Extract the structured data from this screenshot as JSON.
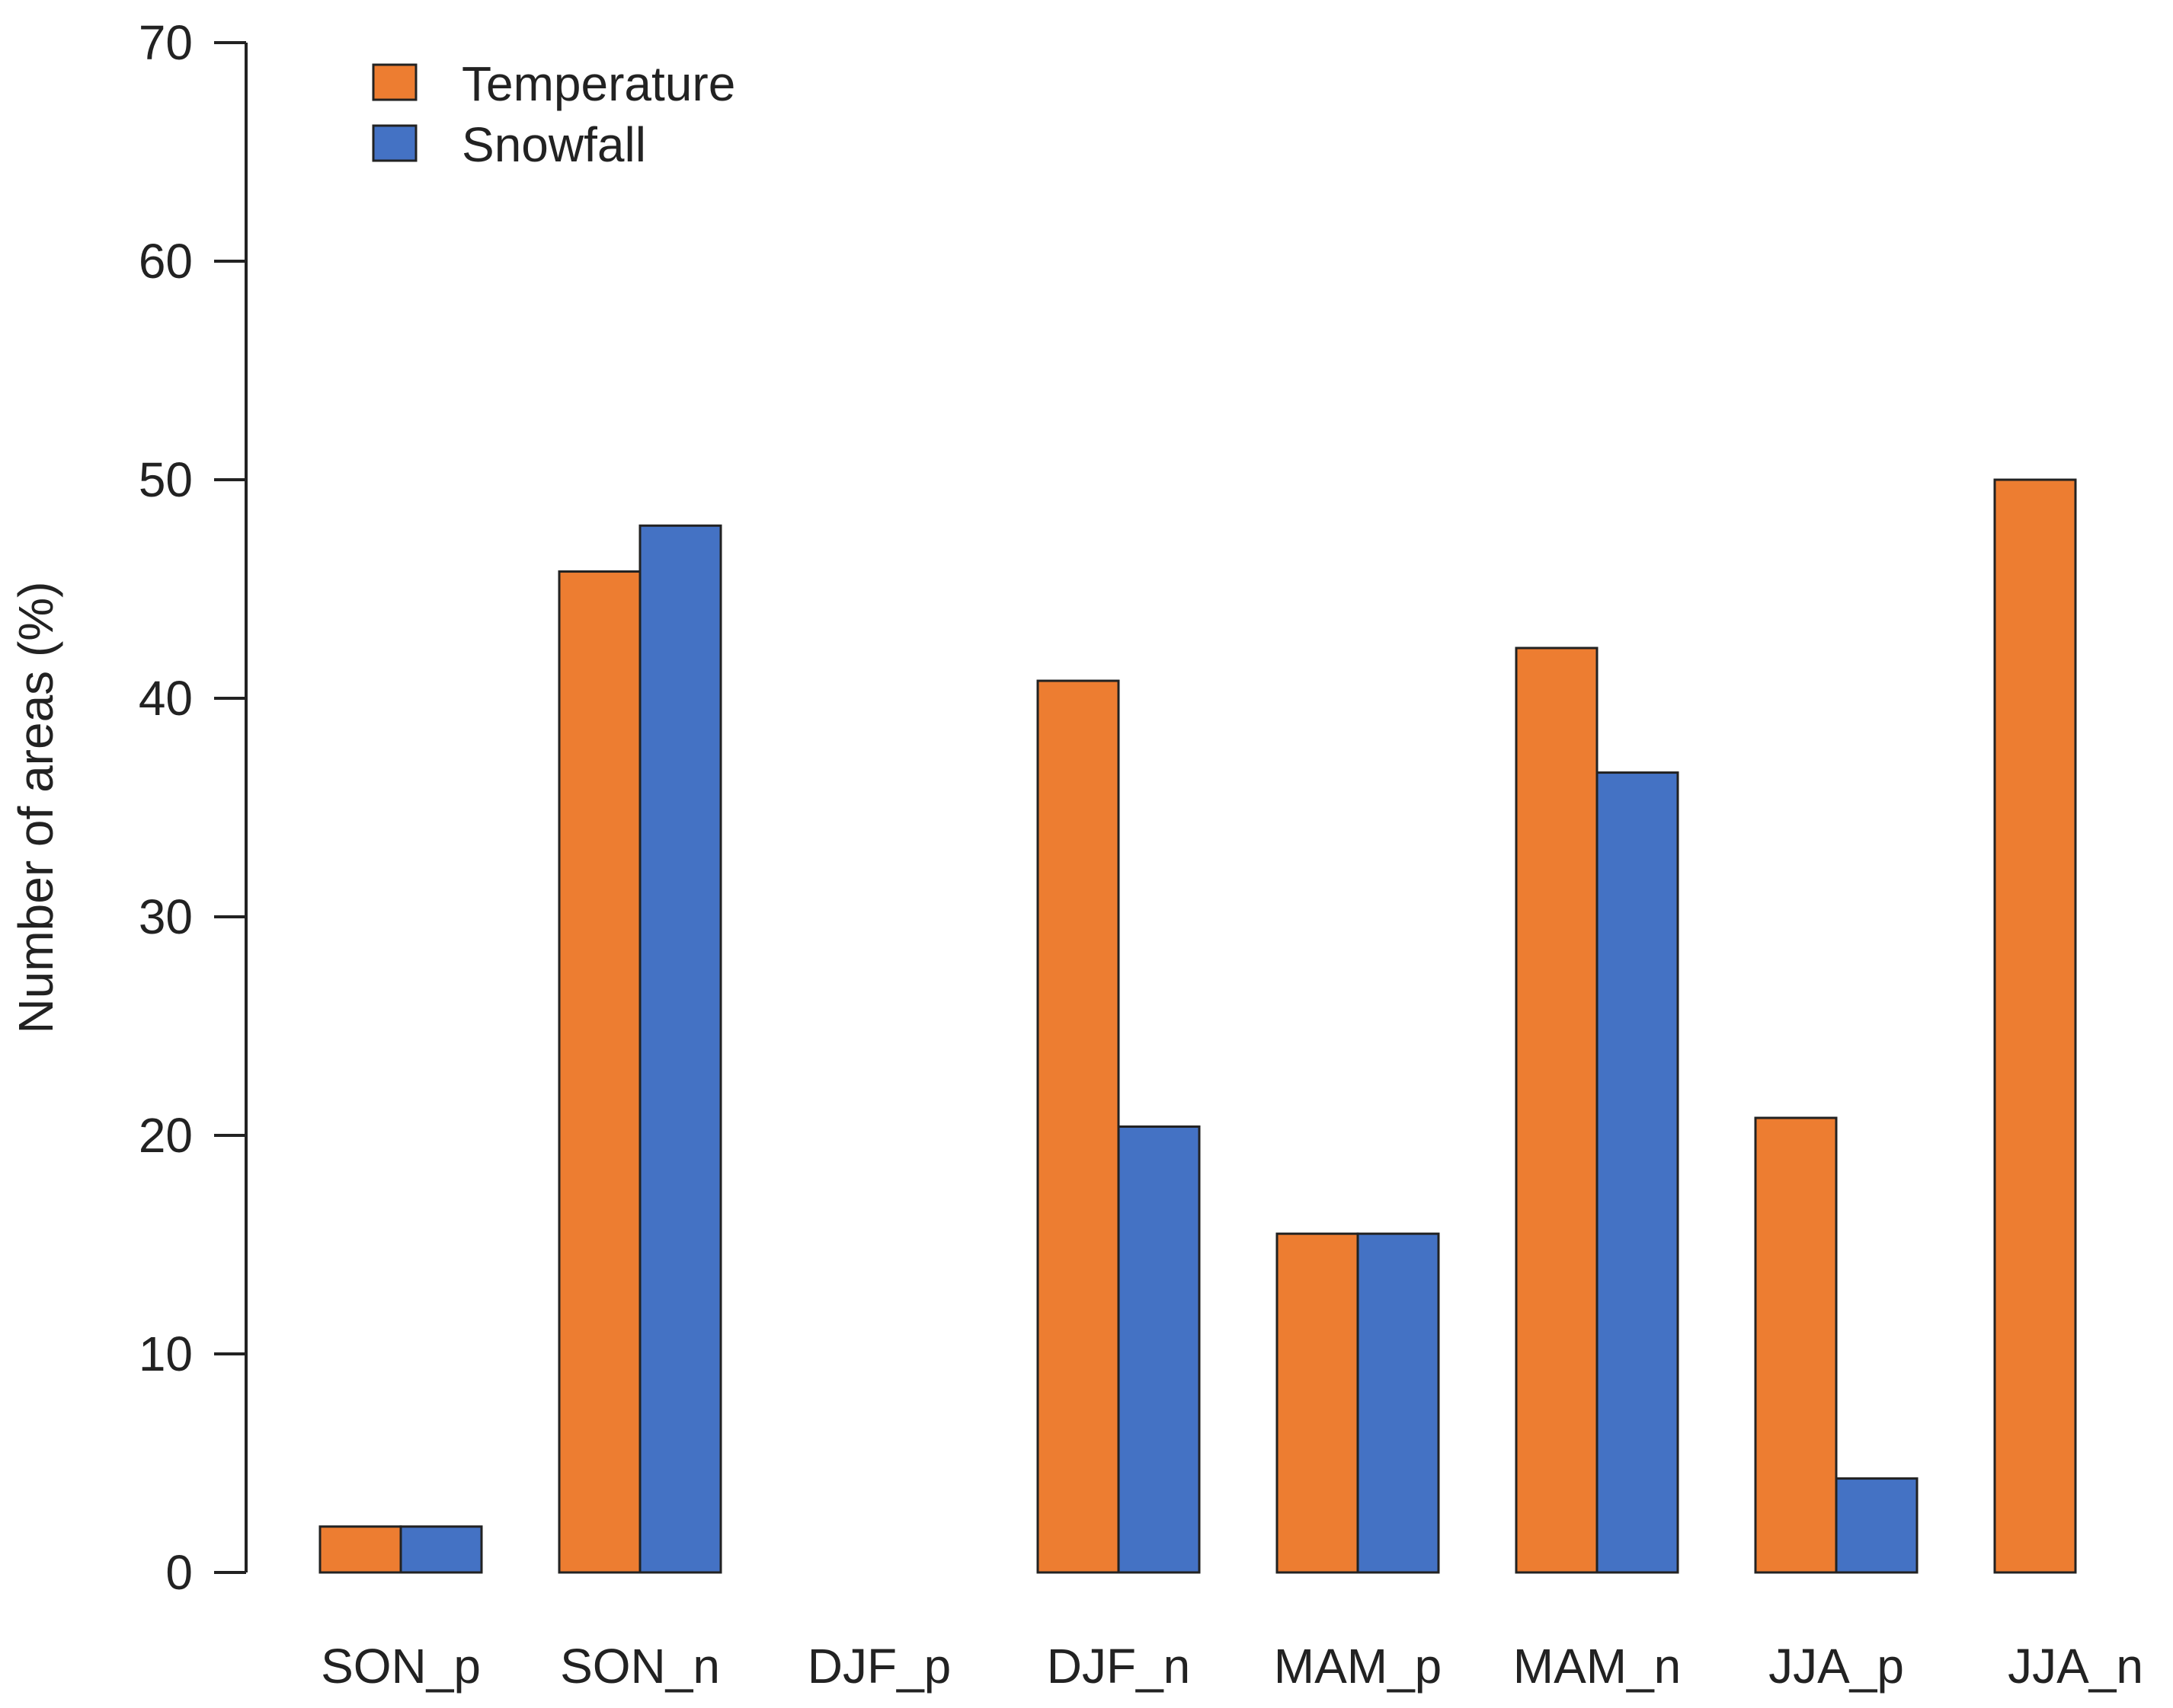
{
  "chart_data": {
    "type": "bar",
    "title": "",
    "xlabel": "",
    "ylabel": "Number of areas (%)",
    "ylim": [
      0,
      70
    ],
    "yticks": [
      0,
      10,
      20,
      30,
      40,
      50,
      60,
      70
    ],
    "grid": false,
    "legend_position": "top-left",
    "categories": [
      "SON_p",
      "SON_n",
      "DJF_p",
      "DJF_n",
      "MAM_p",
      "MAM_n",
      "JJA_p",
      "JJA_n"
    ],
    "series": [
      {
        "name": "Temperature",
        "color": "#ED7D31",
        "values": [
          2.1,
          45.8,
          0,
          40.8,
          15.5,
          42.3,
          20.8,
          50.0
        ]
      },
      {
        "name": "Snowfall",
        "color": "#4472C4",
        "values": [
          2.1,
          47.9,
          0,
          20.4,
          15.5,
          36.6,
          4.3,
          0
        ]
      }
    ]
  }
}
